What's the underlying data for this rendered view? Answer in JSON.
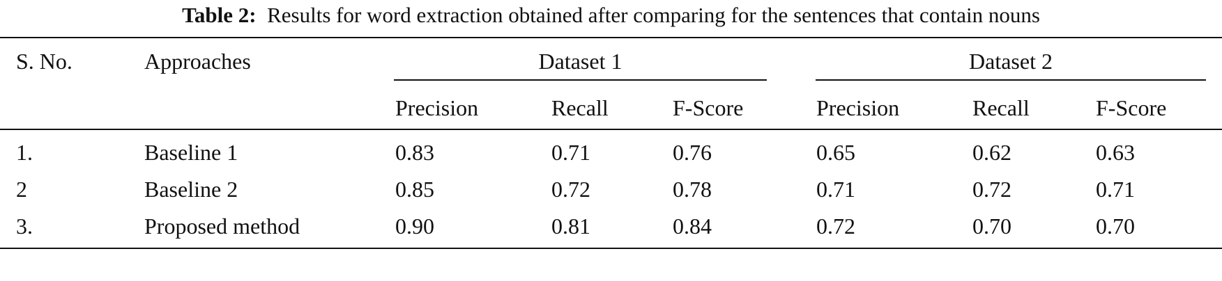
{
  "caption": {
    "label": "Table 2:",
    "text": "Results for word extraction obtained after comparing for the sentences that contain nouns"
  },
  "table": {
    "headers": {
      "sno": "S. No.",
      "approaches": "Approaches",
      "dataset1": "Dataset 1",
      "dataset2": "Dataset 2",
      "sub": [
        "Precision",
        "Recall",
        "F-Score",
        "Precision",
        "Recall",
        "F-Score"
      ]
    },
    "rows": [
      {
        "sno": "1.",
        "approach": "Baseline 1",
        "values": [
          "0.83",
          "0.71",
          "0.76",
          "0.65",
          "0.62",
          "0.63"
        ]
      },
      {
        "sno": "2",
        "approach": "Baseline 2",
        "values": [
          "0.85",
          "0.72",
          "0.78",
          "0.71",
          "0.72",
          "0.71"
        ]
      },
      {
        "sno": "3.",
        "approach": "Proposed method",
        "values": [
          "0.90",
          "0.81",
          "0.84",
          "0.72",
          "0.70",
          "0.70"
        ]
      }
    ]
  }
}
